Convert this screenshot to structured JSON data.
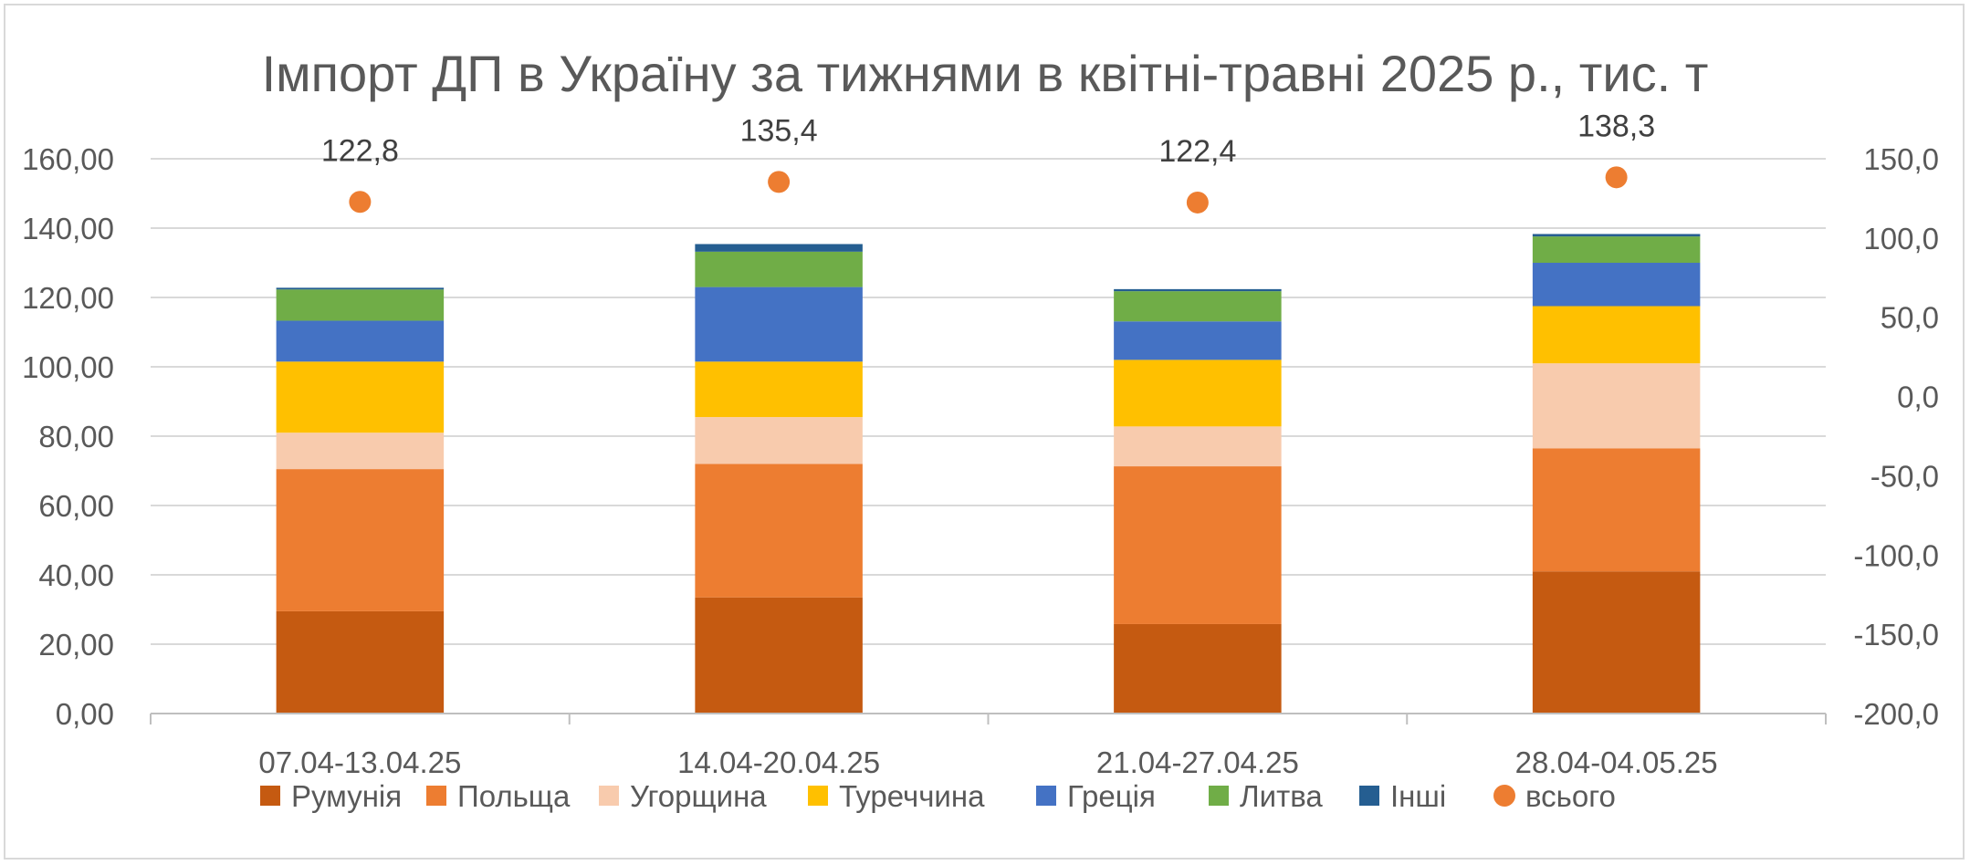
{
  "chart_data": {
    "type": "bar",
    "stacked": true,
    "title": "Імпорт ДП в Україну за тижнями в квітні-травні 2025 р., тис. т",
    "categories": [
      "07.04-13.04.25",
      "14.04-20.04.25",
      "21.04-27.04.25",
      "28.04-04.05.25"
    ],
    "series": [
      {
        "name": "Румунія",
        "color": "#C55A11",
        "values": [
          29.5,
          33.5,
          25.8,
          41.0
        ]
      },
      {
        "name": "Польща",
        "color": "#ED7D31",
        "values": [
          41.0,
          38.5,
          45.5,
          35.5
        ]
      },
      {
        "name": "Угорщина",
        "color": "#F8CBAD",
        "values": [
          10.5,
          13.5,
          11.5,
          24.5
        ]
      },
      {
        "name": "Туреччина",
        "color": "#FFC000",
        "values": [
          20.5,
          16.0,
          19.2,
          16.5
        ]
      },
      {
        "name": "Греція",
        "color": "#4472C4",
        "values": [
          11.8,
          21.5,
          11.1,
          12.5
        ]
      },
      {
        "name": "Литва",
        "color": "#70AD47",
        "values": [
          9.0,
          10.2,
          8.7,
          7.6
        ]
      },
      {
        "name": "Інші",
        "color": "#255E91",
        "values": [
          0.5,
          2.2,
          0.6,
          0.7
        ]
      }
    ],
    "line_series": {
      "name": "всього",
      "color": "#ED7D31",
      "axis": "secondary",
      "values": [
        122.8,
        135.4,
        122.4,
        138.3
      ],
      "labels": [
        "122,8",
        "135,4",
        "122,4",
        "138,3"
      ]
    },
    "y_axis": {
      "min": 0,
      "max": 160,
      "step": 20,
      "tick_labels": [
        "0,00",
        "20,00",
        "40,00",
        "60,00",
        "80,00",
        "100,00",
        "120,00",
        "140,00",
        "160,00"
      ]
    },
    "y2_axis": {
      "min": -200,
      "max": 150,
      "step": 50,
      "tick_labels": [
        "-200,0",
        "-150,0",
        "-100,0",
        "-50,0",
        "0,0",
        "50,0",
        "100,0",
        "150,0"
      ]
    },
    "grid": true,
    "legend_position": "bottom"
  }
}
